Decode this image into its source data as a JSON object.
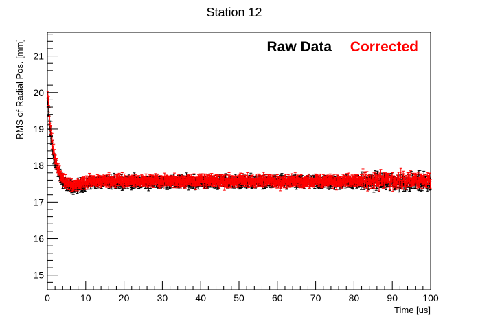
{
  "chart_data": {
    "type": "scatter",
    "title": "Station 12",
    "xlabel": "Time [us]",
    "ylabel": "RMS of Radial Pos. [mm]",
    "xlim": [
      0,
      100
    ],
    "ylim": [
      14.6,
      21.65
    ],
    "x_ticks": [
      "0",
      "10",
      "20",
      "30",
      "40",
      "50",
      "60",
      "70",
      "80",
      "90",
      "100"
    ],
    "y_ticks": [
      "15",
      "16",
      "17",
      "18",
      "19",
      "20",
      "21"
    ],
    "grid": false,
    "legend_placement": "top-right",
    "legend_entries": [
      "Raw Data",
      "Corrected"
    ],
    "series": [
      {
        "name": "Raw Data",
        "color": "#000000",
        "x_start": 0.15,
        "x_step": 0.15,
        "error": 0.12,
        "baseline": 17.55,
        "noise": 0.08,
        "transient_peak": 19.9,
        "transient_decay_us": 1.4,
        "dip_min": 17.38,
        "dip_time_us": 6.5
      },
      {
        "name": "Corrected",
        "color": "#ff0000",
        "x_start": 0.15,
        "x_step": 0.15,
        "error": 0.12,
        "baseline": 17.58,
        "noise": 0.08,
        "transient_peak": 20.2,
        "transient_decay_us": 1.4,
        "dip_min": 17.45,
        "dip_time_us": 6.5
      }
    ]
  },
  "colors": {
    "background": "#ffffff",
    "axis": "#000000",
    "raw": "#000000",
    "corrected": "#ff0000"
  }
}
